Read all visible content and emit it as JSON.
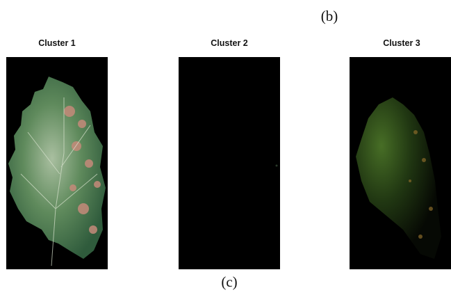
{
  "figure": {
    "label_top": "(b)",
    "panels": [
      {
        "title": "Cluster 1"
      },
      {
        "title": "Cluster 2"
      },
      {
        "title": "Cluster 3"
      }
    ],
    "caption": "(c)"
  }
}
